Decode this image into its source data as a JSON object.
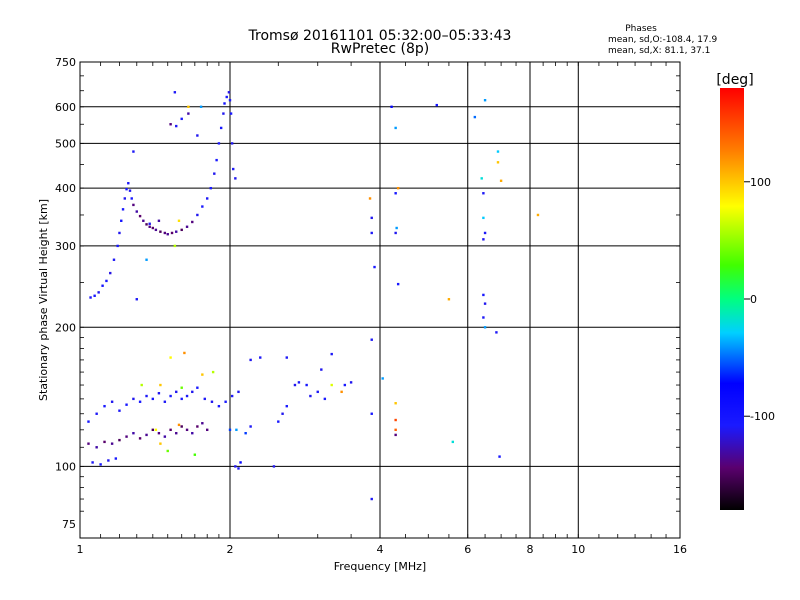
{
  "title_line1": "Tromsø 20161101 05:32:00–05:33:43",
  "title_line2": "RwPretec (8p)",
  "phases": {
    "heading": "Phases",
    "line_o": "mean, sd,O:-108.4, 17.9",
    "line_x": "mean, sd,X:  81.1, 37.1"
  },
  "colorbar": {
    "unit": "[deg]",
    "range": [
      -180,
      180
    ],
    "ticks": [
      100,
      0,
      -100
    ],
    "tick_labels": [
      "100",
      "0",
      "-100"
    ]
  },
  "chart_data": {
    "type": "scatter",
    "xlabel": "Frequency [MHz]",
    "ylabel": "Stationary phase Virtual Height [km]",
    "x_scale": "log",
    "y_scale": "log",
    "xlim": [
      1,
      16
    ],
    "ylim": [
      70,
      750
    ],
    "x_ticks": [
      1,
      2,
      4,
      6,
      8,
      10,
      16
    ],
    "x_tick_labels": [
      "1",
      "2",
      "4",
      "6",
      "8",
      "10",
      "16"
    ],
    "y_ticks": [
      75,
      100,
      200,
      300,
      400,
      500,
      600,
      750
    ],
    "y_tick_labels": [
      "75",
      "100",
      "200",
      "300",
      "400",
      "500",
      "600",
      "750"
    ],
    "grid": true,
    "points": [
      [
        1.05,
        232,
        -110
      ],
      [
        1.07,
        234,
        -105
      ],
      [
        1.09,
        238,
        -112
      ],
      [
        1.11,
        246,
        -100
      ],
      [
        1.13,
        252,
        -108
      ],
      [
        1.15,
        262,
        -115
      ],
      [
        1.17,
        280,
        -110
      ],
      [
        1.19,
        300,
        -105
      ],
      [
        1.2,
        320,
        -112
      ],
      [
        1.21,
        340,
        -100
      ],
      [
        1.22,
        360,
        -108
      ],
      [
        1.23,
        380,
        -112
      ],
      [
        1.24,
        398,
        -105
      ],
      [
        1.25,
        410,
        -110
      ],
      [
        1.26,
        395,
        -112
      ],
      [
        1.27,
        380,
        -108
      ],
      [
        1.28,
        368,
        -140
      ],
      [
        1.3,
        356,
        -130
      ],
      [
        1.32,
        348,
        -145
      ],
      [
        1.34,
        340,
        -135
      ],
      [
        1.36,
        334,
        -150
      ],
      [
        1.38,
        330,
        -140
      ],
      [
        1.4,
        328,
        -145
      ],
      [
        1.42,
        325,
        -135
      ],
      [
        1.45,
        322,
        -150
      ],
      [
        1.48,
        320,
        -140
      ],
      [
        1.5,
        318,
        -135
      ],
      [
        1.53,
        320,
        -145
      ],
      [
        1.56,
        322,
        -130
      ],
      [
        1.6,
        325,
        -150
      ],
      [
        1.64,
        330,
        -135
      ],
      [
        1.68,
        338,
        -140
      ],
      [
        1.72,
        350,
        -112
      ],
      [
        1.76,
        365,
        -108
      ],
      [
        1.8,
        380,
        -110
      ],
      [
        1.83,
        400,
        -105
      ],
      [
        1.86,
        430,
        -112
      ],
      [
        1.88,
        460,
        -108
      ],
      [
        1.9,
        500,
        -110
      ],
      [
        1.92,
        540,
        -105
      ],
      [
        1.94,
        580,
        -112
      ],
      [
        1.95,
        610,
        -100
      ],
      [
        1.97,
        630,
        -108
      ],
      [
        1.99,
        645,
        -115
      ],
      [
        2.0,
        620,
        -110
      ],
      [
        2.01,
        580,
        -105
      ],
      [
        2.02,
        500,
        -112
      ],
      [
        2.03,
        440,
        -110
      ],
      [
        1.28,
        480,
        -110
      ],
      [
        1.38,
        335,
        -112
      ],
      [
        1.44,
        340,
        -130
      ],
      [
        1.52,
        550,
        -140
      ],
      [
        1.56,
        545,
        -110
      ],
      [
        1.6,
        565,
        -108
      ],
      [
        1.65,
        580,
        -130
      ],
      [
        1.72,
        520,
        -112
      ],
      [
        1.55,
        645,
        -110
      ],
      [
        1.75,
        600,
        -40
      ],
      [
        1.65,
        600,
        100
      ],
      [
        2.05,
        420,
        -112
      ],
      [
        1.04,
        125,
        -105
      ],
      [
        1.08,
        130,
        -110
      ],
      [
        1.12,
        135,
        -108
      ],
      [
        1.16,
        138,
        -112
      ],
      [
        1.2,
        132,
        -110
      ],
      [
        1.24,
        136,
        -105
      ],
      [
        1.28,
        140,
        -112
      ],
      [
        1.32,
        138,
        -108
      ],
      [
        1.36,
        142,
        -110
      ],
      [
        1.4,
        140,
        -105
      ],
      [
        1.44,
        144,
        -112
      ],
      [
        1.48,
        138,
        -110
      ],
      [
        1.52,
        142,
        -108
      ],
      [
        1.56,
        145,
        -112
      ],
      [
        1.6,
        140,
        -105
      ],
      [
        1.64,
        142,
        -110
      ],
      [
        1.68,
        145,
        -112
      ],
      [
        1.72,
        148,
        -108
      ],
      [
        1.78,
        140,
        -110
      ],
      [
        1.84,
        138,
        -112
      ],
      [
        1.9,
        135,
        -105
      ],
      [
        1.96,
        138,
        -108
      ],
      [
        2.02,
        142,
        -110
      ],
      [
        2.08,
        145,
        -112
      ],
      [
        1.04,
        112,
        -140
      ],
      [
        1.08,
        110,
        -130
      ],
      [
        1.12,
        113,
        -145
      ],
      [
        1.16,
        112,
        -135
      ],
      [
        1.2,
        114,
        -150
      ],
      [
        1.24,
        116,
        -140
      ],
      [
        1.28,
        118,
        -130
      ],
      [
        1.32,
        115,
        -145
      ],
      [
        1.36,
        117,
        -135
      ],
      [
        1.4,
        120,
        -150
      ],
      [
        1.44,
        118,
        -140
      ],
      [
        1.48,
        116,
        -130
      ],
      [
        1.52,
        120,
        -145
      ],
      [
        1.56,
        118,
        -135
      ],
      [
        1.6,
        122,
        -150
      ],
      [
        1.64,
        120,
        -140
      ],
      [
        1.68,
        118,
        -130
      ],
      [
        1.72,
        122,
        -145
      ],
      [
        1.76,
        124,
        -135
      ],
      [
        1.8,
        120,
        -140
      ],
      [
        1.06,
        102,
        -110
      ],
      [
        1.1,
        101,
        -105
      ],
      [
        1.14,
        103,
        -112
      ],
      [
        1.18,
        104,
        -108
      ],
      [
        1.42,
        120,
        80
      ],
      [
        1.5,
        108,
        40
      ],
      [
        1.58,
        123,
        120
      ],
      [
        1.45,
        112,
        100
      ],
      [
        1.7,
        106,
        30
      ],
      [
        1.52,
        172,
        80
      ],
      [
        1.62,
        176,
        120
      ],
      [
        1.76,
        158,
        100
      ],
      [
        1.85,
        160,
        60
      ],
      [
        1.45,
        150,
        100
      ],
      [
        1.33,
        150,
        60
      ],
      [
        1.6,
        148,
        40
      ],
      [
        2.0,
        120,
        -60
      ],
      [
        2.06,
        120,
        -40
      ],
      [
        1.36,
        280,
        -40
      ],
      [
        1.55,
        300,
        60
      ],
      [
        1.58,
        340,
        90
      ],
      [
        1.3,
        230,
        -110
      ],
      [
        2.05,
        100,
        -112
      ],
      [
        2.08,
        99,
        -110
      ],
      [
        2.1,
        102,
        -80
      ],
      [
        2.15,
        118,
        -60
      ],
      [
        2.2,
        122,
        -110
      ],
      [
        2.2,
        170,
        -112
      ],
      [
        2.3,
        172,
        -110
      ],
      [
        2.5,
        125,
        -105
      ],
      [
        2.55,
        130,
        -112
      ],
      [
        2.6,
        135,
        -108
      ],
      [
        2.7,
        150,
        -112
      ],
      [
        2.75,
        152,
        -110
      ],
      [
        2.85,
        150,
        -105
      ],
      [
        3.0,
        145,
        -110
      ],
      [
        3.05,
        162,
        -112
      ],
      [
        3.1,
        140,
        -108
      ],
      [
        3.2,
        175,
        -110
      ],
      [
        3.4,
        150,
        -108
      ],
      [
        3.5,
        152,
        -112
      ],
      [
        2.45,
        100,
        -112
      ],
      [
        3.2,
        150,
        70
      ],
      [
        3.35,
        145,
        120
      ],
      [
        2.6,
        172,
        -110
      ],
      [
        2.9,
        142,
        -112
      ],
      [
        3.85,
        320,
        -110
      ],
      [
        3.85,
        345,
        -112
      ],
      [
        3.82,
        380,
        120
      ],
      [
        3.9,
        270,
        -105
      ],
      [
        3.85,
        188,
        -110
      ],
      [
        4.05,
        155,
        -40
      ],
      [
        3.85,
        130,
        -105
      ],
      [
        3.85,
        85,
        -110
      ],
      [
        4.22,
        600,
        -80
      ],
      [
        4.3,
        540,
        -40
      ],
      [
        4.3,
        390,
        -105
      ],
      [
        4.35,
        400,
        120
      ],
      [
        4.32,
        328,
        -40
      ],
      [
        4.3,
        320,
        -112
      ],
      [
        4.35,
        248,
        -105
      ],
      [
        4.3,
        137,
        100
      ],
      [
        4.3,
        126,
        150
      ],
      [
        4.3,
        120,
        140
      ],
      [
        4.3,
        117,
        -140
      ],
      [
        5.2,
        605,
        -100
      ],
      [
        5.5,
        230,
        110
      ],
      [
        5.6,
        113,
        -20
      ],
      [
        6.2,
        570,
        -50
      ],
      [
        6.5,
        620,
        -40
      ],
      [
        6.4,
        420,
        -20
      ],
      [
        6.45,
        390,
        -110
      ],
      [
        6.45,
        345,
        -30
      ],
      [
        6.5,
        320,
        -110
      ],
      [
        6.45,
        310,
        -112
      ],
      [
        6.45,
        235,
        -105
      ],
      [
        6.5,
        225,
        -112
      ],
      [
        6.45,
        210,
        -110
      ],
      [
        6.5,
        200,
        -40
      ],
      [
        6.9,
        480,
        -30
      ],
      [
        6.9,
        455,
        100
      ],
      [
        7.0,
        415,
        110
      ],
      [
        6.85,
        195,
        -110
      ],
      [
        6.95,
        105,
        -105
      ],
      [
        8.3,
        350,
        110
      ]
    ]
  }
}
